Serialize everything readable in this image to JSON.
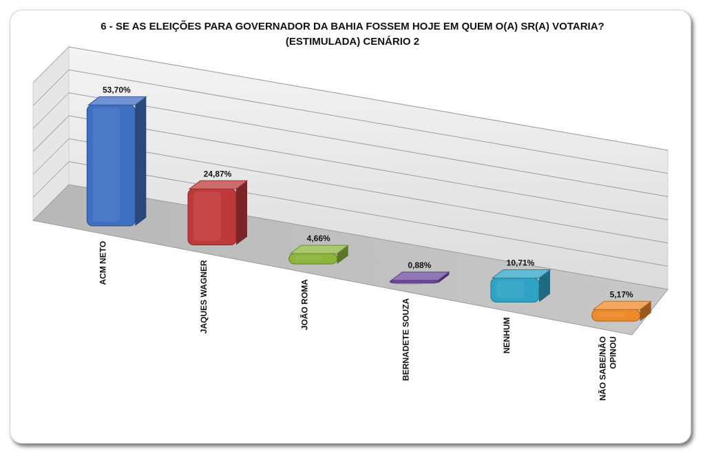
{
  "chart_data": {
    "type": "bar",
    "title": "6 - SE AS ELEIÇÕES PARA GOVERNADOR DA BAHIA FOSSEM HOJE EM QUEM O(A) SR(A) VOTARIA?",
    "subtitle": "(ESTIMULADA) CENÁRIO 2",
    "categories": [
      "ACM NETO",
      "JAQUES WAGNER",
      "JOÃO ROMA",
      "BERNADETE SOUZA",
      "NENHUM",
      "NÃO SABE/NÃO OPINOU"
    ],
    "category_lines": [
      [
        "ACM NETO"
      ],
      [
        "JAQUES WAGNER"
      ],
      [
        "JOÃO ROMA"
      ],
      [
        "BERNADETE SOUZA"
      ],
      [
        "NENHUM"
      ],
      [
        "NÃO SABE/NÃO",
        "OPINOU"
      ]
    ],
    "values": [
      53.7,
      24.87,
      4.66,
      0.88,
      10.71,
      5.17
    ],
    "value_labels": [
      "53,70%",
      "24,87%",
      "4,66%",
      "0,88%",
      "10,71%",
      "5,17%"
    ],
    "colors": [
      "#3f6fc0",
      "#c0393a",
      "#8db53c",
      "#6e4a9e",
      "#2fa3c4",
      "#ef8a2a"
    ],
    "ylim": [
      0,
      60
    ],
    "xlabel": "",
    "ylabel": "",
    "grid": true,
    "legend": "none"
  }
}
